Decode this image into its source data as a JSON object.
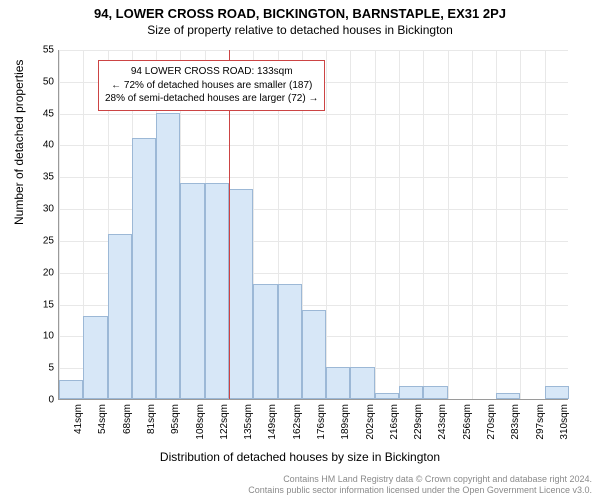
{
  "title": "94, LOWER CROSS ROAD, BICKINGTON, BARNSTAPLE, EX31 2PJ",
  "subtitle": "Size of property relative to detached houses in Bickington",
  "ylabel": "Number of detached properties",
  "xlabel": "Distribution of detached houses by size in Bickington",
  "footer_line1": "Contains HM Land Registry data © Crown copyright and database right 2024.",
  "footer_line2": "Contains public sector information licensed under the Open Government Licence v3.0.",
  "callout": {
    "line1": "94 LOWER CROSS ROAD: 133sqm",
    "line2": "← 72% of detached houses are smaller (187)",
    "line3": "28% of semi-detached houses are larger (72) →"
  },
  "chart": {
    "type": "histogram",
    "ylim_max": 55,
    "ytick_step": 5,
    "bar_fill": "#d7e7f7",
    "bar_stroke": "#9cb8d6",
    "grid_color": "#e8e8e8",
    "axis_color": "#9a9a9a",
    "marker_color": "#cc4444",
    "background": "#ffffff",
    "label_fontsize": 12,
    "tick_fontsize": 10,
    "title_fontsize": 13,
    "xticks": [
      "41sqm",
      "54sqm",
      "68sqm",
      "81sqm",
      "95sqm",
      "108sqm",
      "122sqm",
      "135sqm",
      "149sqm",
      "162sqm",
      "176sqm",
      "189sqm",
      "202sqm",
      "216sqm",
      "229sqm",
      "243sqm",
      "256sqm",
      "270sqm",
      "283sqm",
      "297sqm",
      "310sqm"
    ],
    "values": [
      3,
      13,
      26,
      41,
      45,
      34,
      34,
      33,
      18,
      18,
      14,
      5,
      5,
      1,
      2,
      2,
      0,
      0,
      1,
      0,
      2
    ],
    "marker_index": 7,
    "marker_value": 133
  }
}
